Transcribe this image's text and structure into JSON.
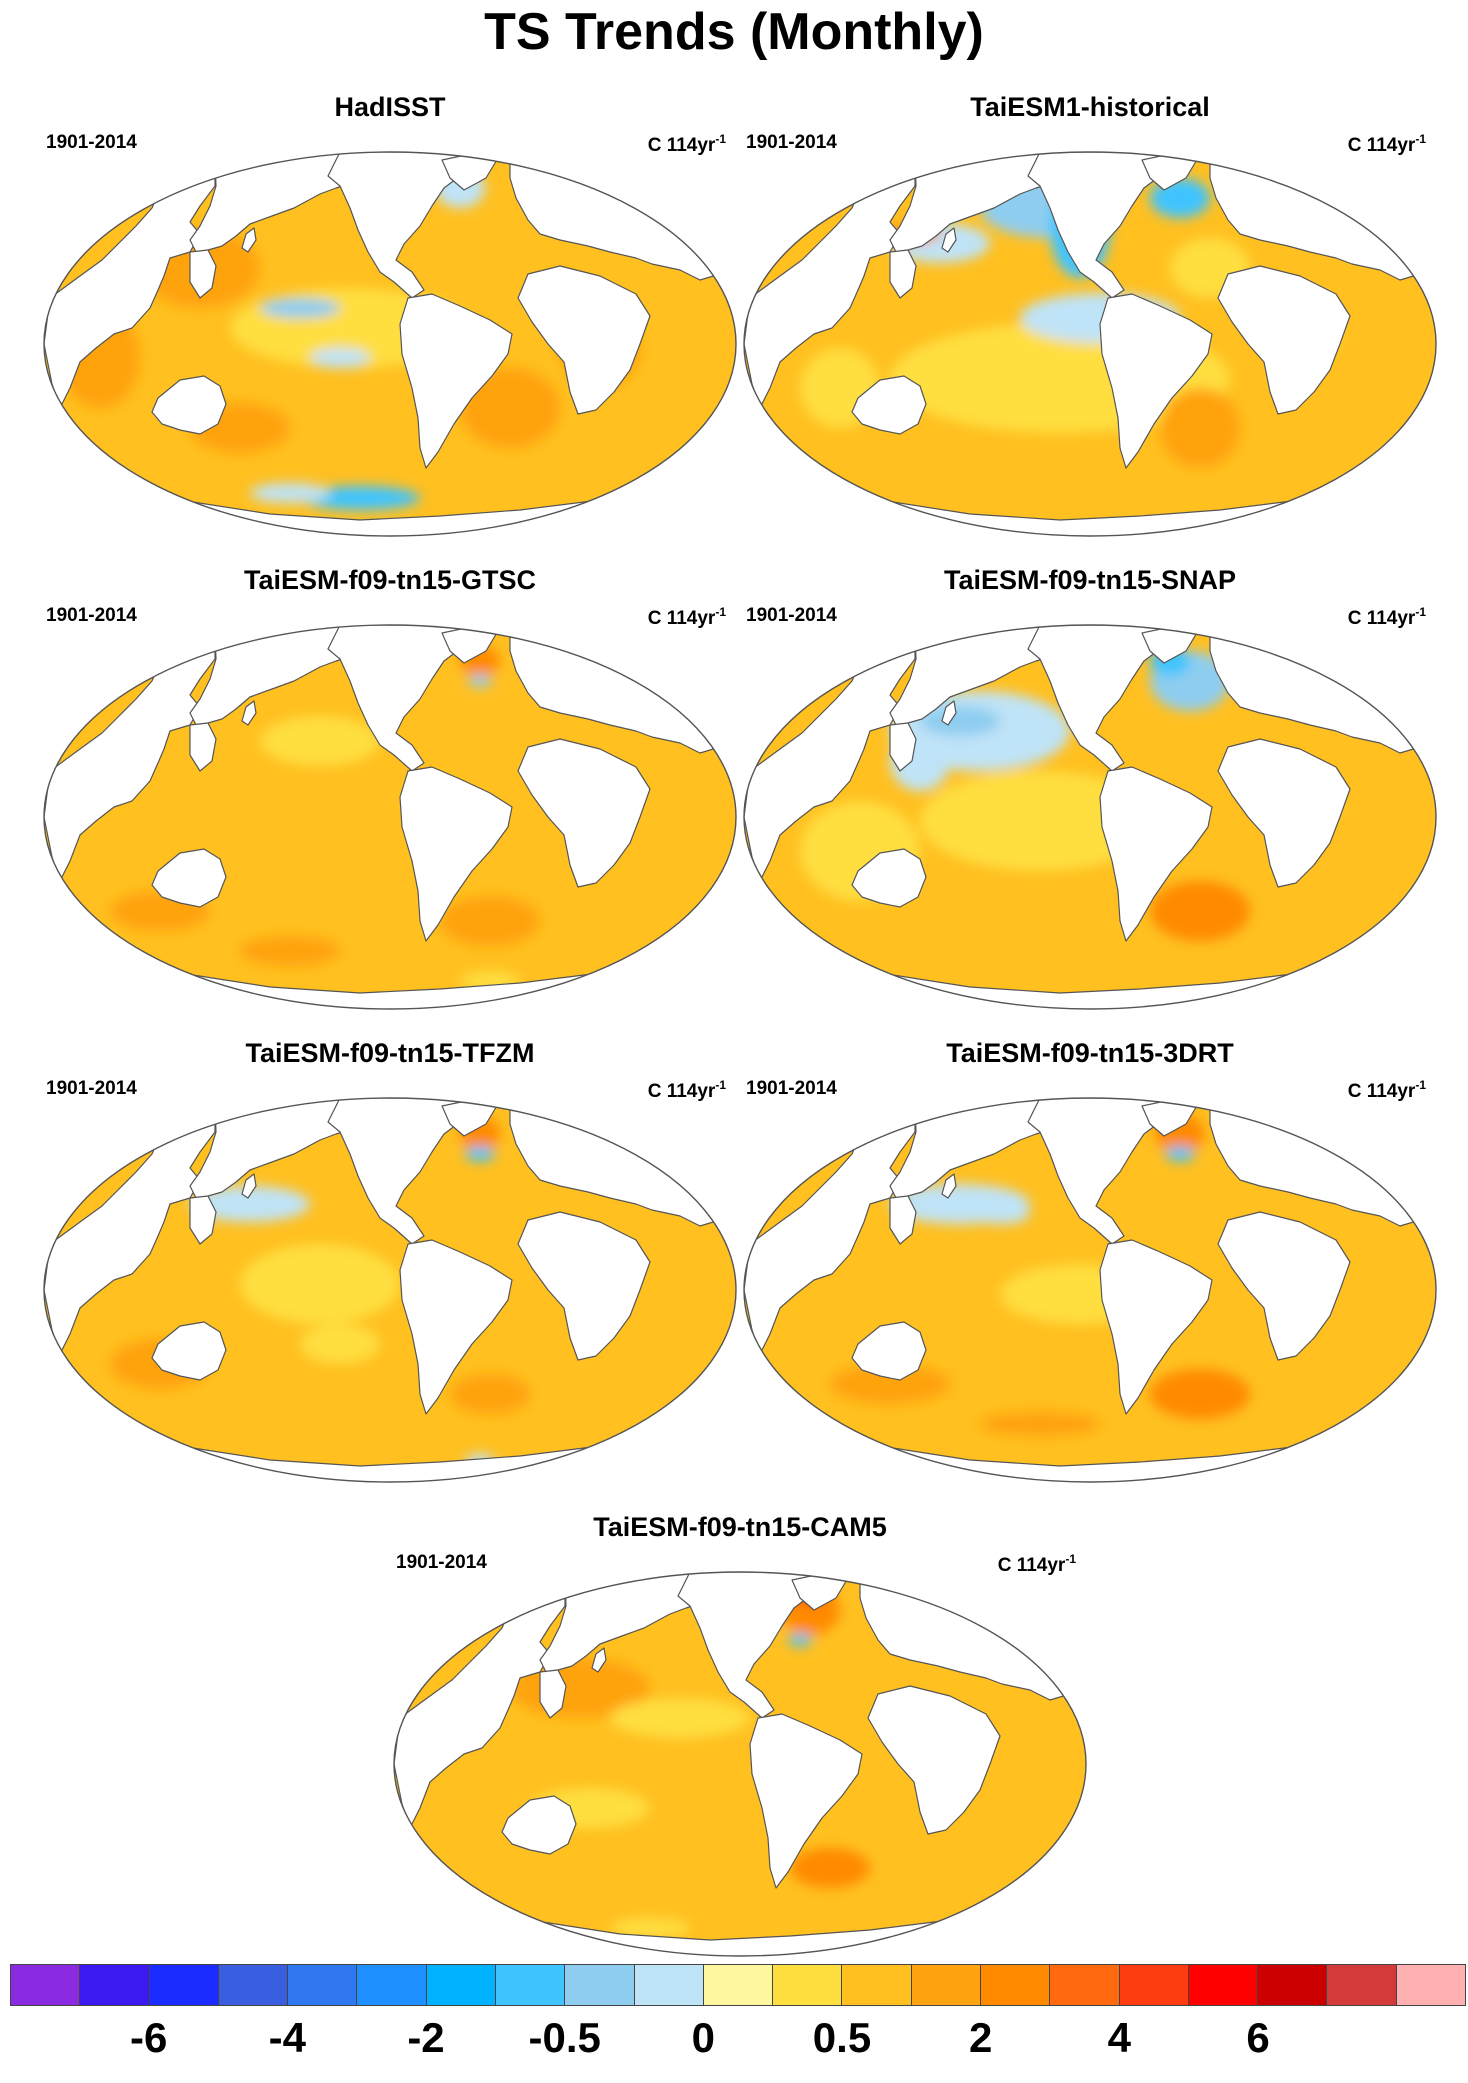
{
  "figure": {
    "title": "TS Trends (Monthly)"
  },
  "panels": [
    {
      "title": "HadISST",
      "period": "1901-2014",
      "units_base": "C 114yr",
      "units_exp": "-1"
    },
    {
      "title": "TaiESM1-historical",
      "period": "1901-2014",
      "units_base": "C 114yr",
      "units_exp": "-1"
    },
    {
      "title": "TaiESM-f09-tn15-GTSC",
      "period": "1901-2014",
      "units_base": "C 114yr",
      "units_exp": "-1"
    },
    {
      "title": "TaiESM-f09-tn15-SNAP",
      "period": "1901-2014",
      "units_base": "C 114yr",
      "units_exp": "-1"
    },
    {
      "title": "TaiESM-f09-tn15-TFZM",
      "period": "1901-2014",
      "units_base": "C 114yr",
      "units_exp": "-1"
    },
    {
      "title": "TaiESM-f09-tn15-3DRT",
      "period": "1901-2014",
      "units_base": "C 114yr",
      "units_exp": "-1"
    },
    {
      "title": "TaiESM-f09-tn15-CAM5",
      "period": "1901-2014",
      "units_base": "C 114yr",
      "units_exp": "-1"
    }
  ],
  "colorbar": {
    "colors": [
      "#8a2be2",
      "#3a1af0",
      "#1a2cff",
      "#3a5ee0",
      "#2f78f0",
      "#1e90ff",
      "#00b2ff",
      "#40c4ff",
      "#8ecdf0",
      "#bfe3f7",
      "#fff6a0",
      "#ffde40",
      "#ffc020",
      "#ffa310",
      "#ff8a00",
      "#ff6a10",
      "#ff3c10",
      "#ff0000",
      "#cc0000",
      "#d43a3a",
      "#ffb0b0"
    ],
    "tick_labels": [
      {
        "text": "-6",
        "after_box": 1
      },
      {
        "text": "-4",
        "after_box": 3
      },
      {
        "text": "-2",
        "after_box": 5
      },
      {
        "text": "-0.5",
        "after_box": 7
      },
      {
        "text": "0",
        "after_box": 9
      },
      {
        "text": "0.5",
        "after_box": 11
      },
      {
        "text": "2",
        "after_box": 13
      },
      {
        "text": "4",
        "after_box": 15
      },
      {
        "text": "6",
        "after_box": 17
      }
    ]
  },
  "map_colors": {
    "ocean_base": "#ffc020",
    "warm_1": "#ffde40",
    "warm_2": "#ffa310",
    "warm_3": "#ff8a00",
    "cool_1": "#bfe3f7",
    "cool_2": "#8ecdf0",
    "cool_3": "#40c4ff",
    "hot_spot": "#ff0000",
    "land": "#ffffff",
    "coastline": "#555555"
  }
}
